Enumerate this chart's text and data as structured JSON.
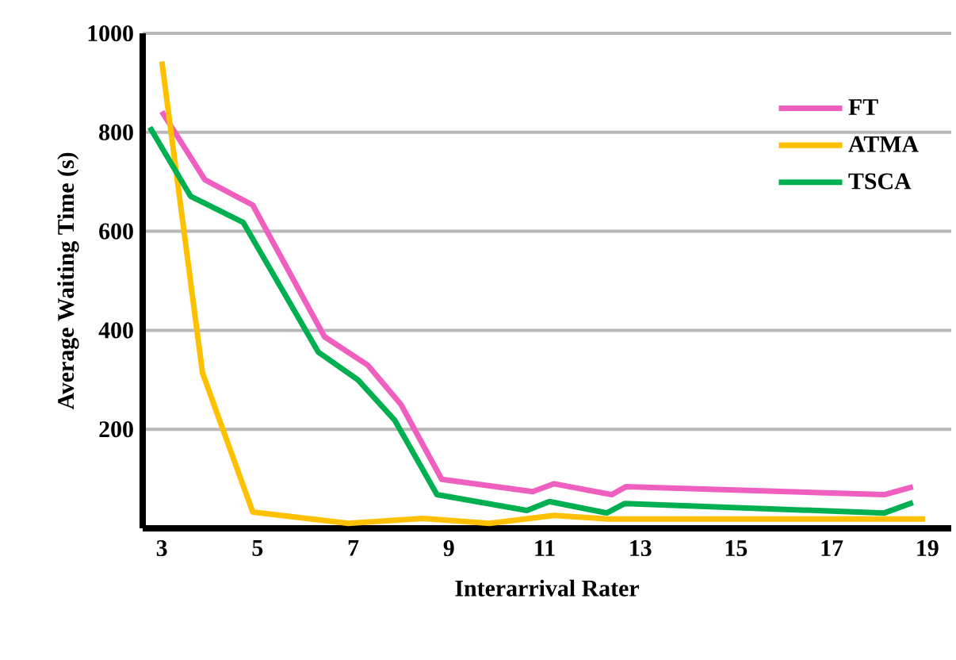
{
  "chart_data": {
    "type": "line",
    "xlabel": "Interarrival Rater",
    "ylabel": "Average Waiting Time (s)",
    "xlim": [
      2.6,
      19.5
    ],
    "ylim": [
      0,
      1000
    ],
    "xticks": [
      3,
      5,
      7,
      9,
      11,
      13,
      15,
      17,
      19
    ],
    "yticks": [
      200,
      400,
      600,
      800,
      1000
    ],
    "grid": "y",
    "legend": "top right",
    "line_style": "solid",
    "marker": "none",
    "series": [
      {
        "name": "FT",
        "color": "#ef5fbf",
        "x": [
          3,
          3.9,
          4.9,
          6.4,
          7.3,
          8.0,
          8.85,
          10.75,
          11.2,
          12.4,
          12.7,
          18.1,
          18.7
        ],
        "values": [
          842,
          704,
          653,
          387,
          330,
          250,
          99,
          74,
          90,
          68,
          84,
          68,
          84
        ]
      },
      {
        "name": "ATMA",
        "color": "#ffc000",
        "x": [
          3.0,
          3.85,
          4.9,
          6.9,
          8.45,
          9.85,
          11.2,
          12.3,
          18.95
        ],
        "values": [
          943,
          314,
          33,
          10,
          20,
          10,
          26,
          19,
          19
        ]
      },
      {
        "name": "TSCA",
        "color": "#00b050",
        "x": [
          2.75,
          3.6,
          4.7,
          6.27,
          7.1,
          7.87,
          8.75,
          10.63,
          11.1,
          12.3,
          12.67,
          18.1,
          18.7
        ],
        "values": [
          810,
          671,
          618,
          356,
          300,
          218,
          68,
          36,
          54,
          31,
          50,
          31,
          52
        ]
      }
    ]
  }
}
